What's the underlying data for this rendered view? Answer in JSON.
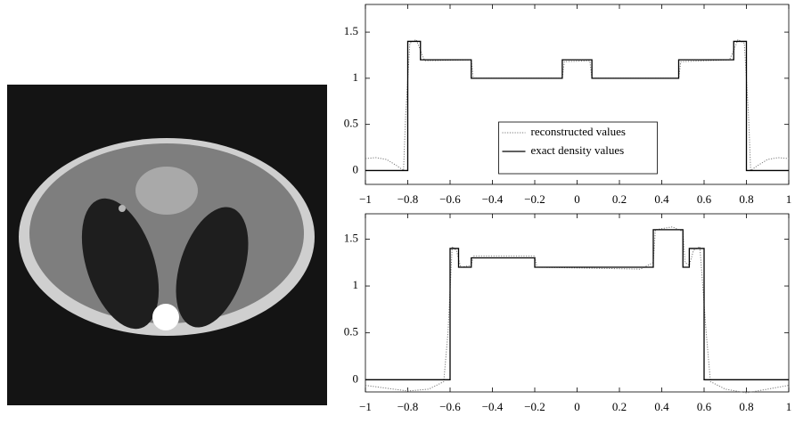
{
  "chart_data": [
    {
      "type": "line",
      "xlim": [
        -1,
        1
      ],
      "ylim": [
        -0.15,
        1.8
      ],
      "xticks": [
        {
          "value": -1,
          "label": "−1"
        },
        {
          "value": -0.8,
          "label": "−0.8"
        },
        {
          "value": -0.6,
          "label": "−0.6"
        },
        {
          "value": -0.4,
          "label": "−0.4"
        },
        {
          "value": -0.2,
          "label": "−0.2"
        },
        0,
        0.2,
        0.4,
        0.6,
        0.8,
        1
      ],
      "yticks": [
        0,
        0.5,
        1,
        1.5
      ],
      "legend": "lower center",
      "series": [
        {
          "name": "reconstructed values",
          "color": "#777777",
          "style": "dotted",
          "x": [
            -1,
            -0.95,
            -0.9,
            -0.85,
            -0.82,
            -0.81,
            -0.79,
            -0.76,
            -0.74,
            -0.72,
            -0.5,
            -0.49,
            -0.07,
            -0.06,
            0.06,
            0.07,
            0.48,
            0.49,
            0.72,
            0.74,
            0.76,
            0.79,
            0.81,
            0.82,
            0.85,
            0.9,
            0.95,
            1
          ],
          "values": [
            0.13,
            0.14,
            0.12,
            0.05,
            0.0,
            0.6,
            1.38,
            1.42,
            1.3,
            1.19,
            1.2,
            1.0,
            1.0,
            1.18,
            1.19,
            1.0,
            1.0,
            1.18,
            1.2,
            1.3,
            1.42,
            1.38,
            0.6,
            0.0,
            0.05,
            0.12,
            0.14,
            0.13
          ]
        },
        {
          "name": "exact density values",
          "color": "#000000",
          "style": "solid",
          "x": [
            -1,
            -0.8,
            -0.8,
            -0.74,
            -0.74,
            -0.5,
            -0.5,
            -0.07,
            -0.07,
            0.07,
            0.07,
            0.48,
            0.48,
            0.74,
            0.74,
            0.8,
            0.8,
            1
          ],
          "values": [
            0,
            0,
            1.4,
            1.4,
            1.2,
            1.2,
            1,
            1,
            1.2,
            1.2,
            1,
            1,
            1.2,
            1.2,
            1.4,
            1.4,
            0,
            0
          ]
        }
      ]
    },
    {
      "type": "line",
      "xlim": [
        -1,
        1
      ],
      "ylim": [
        -0.13,
        1.77
      ],
      "xticks": [
        {
          "value": -1,
          "label": "−1"
        },
        {
          "value": -0.8,
          "label": "−0.8"
        },
        {
          "value": -0.6,
          "label": "−0.6"
        },
        {
          "value": -0.4,
          "label": "−0.4"
        },
        {
          "value": -0.2,
          "label": "−0.2"
        },
        0,
        0.2,
        0.4,
        0.6,
        0.8,
        1
      ],
      "yticks": [
        0,
        0.5,
        1,
        1.5
      ],
      "series": [
        {
          "color": "#777777",
          "style": "dotted",
          "x": [
            -1,
            -0.9,
            -0.8,
            -0.7,
            -0.63,
            -0.61,
            -0.59,
            -0.57,
            -0.55,
            -0.5,
            -0.49,
            -0.2,
            -0.19,
            0.3,
            0.36,
            0.37,
            0.45,
            0.5,
            0.51,
            0.53,
            0.55,
            0.58,
            0.61,
            0.63,
            0.7,
            0.8,
            0.9,
            1
          ],
          "values": [
            -0.06,
            -0.09,
            -0.12,
            -0.1,
            -0.02,
            0.5,
            1.42,
            1.38,
            1.2,
            1.22,
            1.32,
            1.32,
            1.2,
            1.18,
            1.25,
            1.6,
            1.63,
            1.58,
            1.25,
            1.22,
            1.38,
            1.42,
            0.5,
            -0.02,
            -0.1,
            -0.14,
            -0.1,
            -0.06
          ]
        },
        {
          "color": "#000000",
          "style": "solid",
          "x": [
            -1,
            -0.6,
            -0.6,
            -0.56,
            -0.56,
            -0.5,
            -0.5,
            -0.2,
            -0.2,
            0.36,
            0.36,
            0.5,
            0.5,
            0.53,
            0.53,
            0.6,
            0.6,
            1
          ],
          "values": [
            0,
            0,
            1.4,
            1.4,
            1.2,
            1.2,
            1.3,
            1.3,
            1.2,
            1.2,
            1.6,
            1.6,
            1.2,
            1.2,
            1.4,
            1.4,
            0,
            0
          ]
        }
      ]
    }
  ]
}
